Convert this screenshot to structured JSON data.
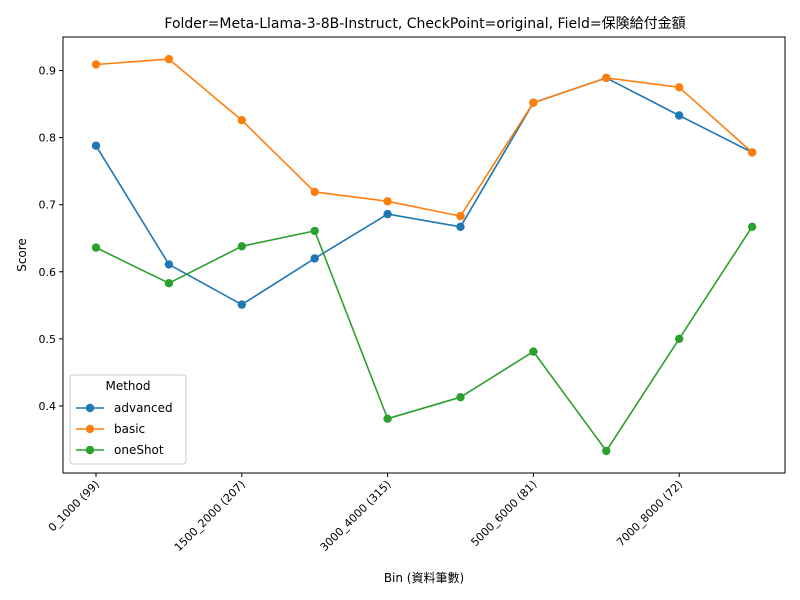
{
  "chart_data": {
    "type": "line",
    "title": "Folder=Meta-Llama-3-8B-Instruct, CheckPoint=original, Field=保険給付金額",
    "xlabel": "Bin (資料筆數)",
    "ylabel": "Score",
    "x_tick_labels": [
      "0_1000 (99)",
      "1500_2000 (207)",
      "3000_4000 (315)",
      "5000_6000 (81)",
      "7000_8000 (72)"
    ],
    "x_tick_positions": [
      0,
      2,
      4,
      6,
      8
    ],
    "point_count": 10,
    "ylim": [
      0.3,
      0.95
    ],
    "y_ticks": [
      0.4,
      0.5,
      0.6,
      0.7,
      0.8,
      0.9
    ],
    "y_tick_labels": [
      "0.4",
      "0.5",
      "0.6",
      "0.7",
      "0.8",
      "0.9"
    ],
    "grid": false,
    "legend": {
      "title": "Method",
      "placement": "lower-left"
    },
    "series": [
      {
        "name": "advanced",
        "color": "#1f77b4",
        "values": [
          0.788,
          0.611,
          0.551,
          0.62,
          0.686,
          0.667,
          0.852,
          0.889,
          0.833,
          0.778
        ]
      },
      {
        "name": "basic",
        "color": "#ff7f0e",
        "values": [
          0.909,
          0.917,
          0.826,
          0.719,
          0.705,
          0.683,
          0.852,
          0.889,
          0.875,
          0.778
        ]
      },
      {
        "name": "oneShot",
        "color": "#2ca02c",
        "values": [
          0.636,
          0.583,
          0.638,
          0.661,
          0.381,
          0.413,
          0.481,
          0.333,
          0.5,
          0.667
        ]
      }
    ]
  }
}
